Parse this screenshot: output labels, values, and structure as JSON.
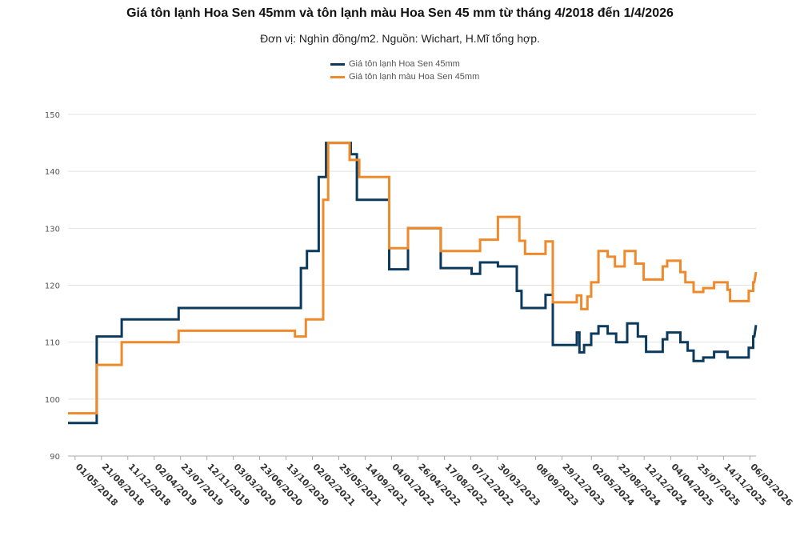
{
  "chart_data": {
    "type": "line",
    "title": "Giá tôn lạnh Hoa Sen 45mm và tôn lạnh màu Hoa Sen 45 mm từ tháng 4/2018 đến 1/4/2026",
    "subtitle": "Đơn vị: Nghìn đồng/m2. Nguồn: Wichart, H.Mĩ tổng hợp.",
    "ylim": [
      90,
      150
    ],
    "yticks": [
      90,
      100,
      110,
      120,
      130,
      140,
      150
    ],
    "x_range": [
      "2018-04-01",
      "2026-04-01"
    ],
    "xticks": [
      "01/05/2018",
      "21/08/2018",
      "11/12/2018",
      "02/04/2019",
      "23/07/2019",
      "12/11/2019",
      "03/03/2020",
      "23/06/2020",
      "13/10/2020",
      "02/02/2021",
      "25/05/2021",
      "14/09/2021",
      "04/01/2022",
      "26/04/2022",
      "17/08/2022",
      "07/12/2022",
      "30/03/2023",
      "08/09/2023",
      "29/12/2023",
      "02/05/2024",
      "22/08/2024",
      "12/12/2024",
      "04/04/2025",
      "25/07/2025",
      "14/11/2025",
      "06/03/2026"
    ],
    "legend_position": "top-center",
    "grid": true,
    "series": [
      {
        "name": "Giá tôn lạnh Hoa Sen 45mm",
        "color": "#0b3a5c",
        "points": [
          [
            "2018-04-01",
            95.8
          ],
          [
            "2018-08-01",
            95.8
          ],
          [
            "2018-08-01",
            111
          ],
          [
            "2018-11-15",
            111
          ],
          [
            "2018-11-15",
            114
          ],
          [
            "2019-07-15",
            114
          ],
          [
            "2019-07-15",
            116
          ],
          [
            "2020-12-15",
            116
          ],
          [
            "2020-12-15",
            123
          ],
          [
            "2021-01-10",
            123
          ],
          [
            "2021-01-10",
            126
          ],
          [
            "2021-03-01",
            126
          ],
          [
            "2021-03-01",
            139
          ],
          [
            "2021-04-01",
            139
          ],
          [
            "2021-04-01",
            145
          ],
          [
            "2021-07-15",
            145
          ],
          [
            "2021-07-15",
            143
          ],
          [
            "2021-08-10",
            143
          ],
          [
            "2021-08-10",
            135
          ],
          [
            "2021-12-25",
            135
          ],
          [
            "2021-12-25",
            122.8
          ],
          [
            "2022-03-15",
            122.8
          ],
          [
            "2022-03-15",
            130
          ],
          [
            "2022-08-01",
            130
          ],
          [
            "2022-08-01",
            123
          ],
          [
            "2022-12-10",
            123
          ],
          [
            "2022-12-10",
            122
          ],
          [
            "2023-01-15",
            122
          ],
          [
            "2023-01-15",
            124
          ],
          [
            "2023-04-01",
            124
          ],
          [
            "2023-04-01",
            123.3
          ],
          [
            "2023-06-20",
            123.3
          ],
          [
            "2023-06-20",
            119
          ],
          [
            "2023-07-10",
            119
          ],
          [
            "2023-07-10",
            116
          ],
          [
            "2023-10-20",
            116
          ],
          [
            "2023-10-20",
            118.3
          ],
          [
            "2023-11-20",
            118.3
          ],
          [
            "2023-11-20",
            109.5
          ],
          [
            "2024-03-01",
            109.5
          ],
          [
            "2024-03-01",
            111.7
          ],
          [
            "2024-03-12",
            111.7
          ],
          [
            "2024-03-12",
            108.2
          ],
          [
            "2024-04-01",
            108.2
          ],
          [
            "2024-04-01",
            109.5
          ],
          [
            "2024-05-01",
            109.5
          ],
          [
            "2024-05-01",
            111.5
          ],
          [
            "2024-06-01",
            111.5
          ],
          [
            "2024-06-01",
            112.8
          ],
          [
            "2024-07-10",
            112.8
          ],
          [
            "2024-07-10",
            111.5
          ],
          [
            "2024-08-15",
            111.5
          ],
          [
            "2024-08-15",
            110
          ],
          [
            "2024-10-01",
            110
          ],
          [
            "2024-10-01",
            113.3
          ],
          [
            "2024-11-15",
            113.3
          ],
          [
            "2024-11-15",
            111
          ],
          [
            "2024-12-20",
            111
          ],
          [
            "2024-12-20",
            108.3
          ],
          [
            "2025-03-01",
            108.3
          ],
          [
            "2025-03-01",
            110.5
          ],
          [
            "2025-03-20",
            110.5
          ],
          [
            "2025-03-20",
            111.7
          ],
          [
            "2025-05-15",
            111.7
          ],
          [
            "2025-05-15",
            110
          ],
          [
            "2025-06-15",
            110
          ],
          [
            "2025-06-15",
            108.5
          ],
          [
            "2025-07-10",
            108.5
          ],
          [
            "2025-07-10",
            106.7
          ],
          [
            "2025-08-20",
            106.7
          ],
          [
            "2025-08-20",
            107.3
          ],
          [
            "2025-10-05",
            107.3
          ],
          [
            "2025-10-05",
            108.3
          ],
          [
            "2025-12-01",
            108.3
          ],
          [
            "2025-12-01",
            107.3
          ],
          [
            "2026-03-01",
            107.3
          ],
          [
            "2026-03-01",
            109
          ],
          [
            "2026-03-20",
            109
          ],
          [
            "2026-03-20",
            111
          ],
          [
            "2026-03-25",
            111
          ],
          [
            "2026-04-01",
            113
          ]
        ]
      },
      {
        "name": "Giá tôn lạnh màu Hoa Sen 45mm",
        "color": "#ee8a2c",
        "points": [
          [
            "2018-04-01",
            97.5
          ],
          [
            "2018-08-01",
            97.5
          ],
          [
            "2018-08-01",
            106
          ],
          [
            "2018-11-15",
            106
          ],
          [
            "2018-11-15",
            110
          ],
          [
            "2019-07-15",
            110
          ],
          [
            "2019-07-15",
            112
          ],
          [
            "2020-11-20",
            112
          ],
          [
            "2020-11-20",
            111
          ],
          [
            "2021-01-05",
            111
          ],
          [
            "2021-01-05",
            114
          ],
          [
            "2021-03-20",
            114
          ],
          [
            "2021-03-20",
            135
          ],
          [
            "2021-04-10",
            135
          ],
          [
            "2021-04-10",
            145
          ],
          [
            "2021-07-10",
            145
          ],
          [
            "2021-07-10",
            142
          ],
          [
            "2021-08-20",
            142
          ],
          [
            "2021-08-20",
            139
          ],
          [
            "2021-12-25",
            139
          ],
          [
            "2021-12-25",
            126.5
          ],
          [
            "2022-03-15",
            126.5
          ],
          [
            "2022-03-15",
            130
          ],
          [
            "2022-08-01",
            130
          ],
          [
            "2022-08-01",
            126
          ],
          [
            "2023-01-15",
            126
          ],
          [
            "2023-01-15",
            128
          ],
          [
            "2023-04-01",
            128
          ],
          [
            "2023-04-01",
            132
          ],
          [
            "2023-07-01",
            132
          ],
          [
            "2023-07-01",
            127.8
          ],
          [
            "2023-07-25",
            127.8
          ],
          [
            "2023-07-25",
            125.5
          ],
          [
            "2023-10-20",
            125.5
          ],
          [
            "2023-10-20",
            127.7
          ],
          [
            "2023-11-20",
            127.7
          ],
          [
            "2023-11-20",
            117
          ],
          [
            "2024-03-01",
            117
          ],
          [
            "2024-03-01",
            118.2
          ],
          [
            "2024-03-20",
            118.2
          ],
          [
            "2024-03-20",
            115.8
          ],
          [
            "2024-04-15",
            115.8
          ],
          [
            "2024-04-15",
            118
          ],
          [
            "2024-05-01",
            118
          ],
          [
            "2024-05-01",
            120.5
          ],
          [
            "2024-06-01",
            120.5
          ],
          [
            "2024-06-01",
            126
          ],
          [
            "2024-07-10",
            126
          ],
          [
            "2024-07-10",
            125
          ],
          [
            "2024-08-10",
            125
          ],
          [
            "2024-08-10",
            123.3
          ],
          [
            "2024-09-20",
            123.3
          ],
          [
            "2024-09-20",
            126
          ],
          [
            "2024-11-05",
            126
          ],
          [
            "2024-11-05",
            123.8
          ],
          [
            "2024-12-10",
            123.8
          ],
          [
            "2024-12-10",
            121
          ],
          [
            "2025-03-01",
            121
          ],
          [
            "2025-03-01",
            123.3
          ],
          [
            "2025-03-20",
            123.3
          ],
          [
            "2025-03-20",
            124.3
          ],
          [
            "2025-05-15",
            124.3
          ],
          [
            "2025-05-15",
            122.3
          ],
          [
            "2025-06-05",
            122.3
          ],
          [
            "2025-06-05",
            120.5
          ],
          [
            "2025-07-10",
            120.5
          ],
          [
            "2025-07-10",
            118.8
          ],
          [
            "2025-08-20",
            118.8
          ],
          [
            "2025-08-20",
            119.5
          ],
          [
            "2025-10-05",
            119.5
          ],
          [
            "2025-10-05",
            120.5
          ],
          [
            "2025-12-01",
            120.5
          ],
          [
            "2025-12-01",
            119.2
          ],
          [
            "2025-12-12",
            119.2
          ],
          [
            "2025-12-12",
            117.2
          ],
          [
            "2026-03-01",
            117.2
          ],
          [
            "2026-03-01",
            119
          ],
          [
            "2026-03-20",
            119
          ],
          [
            "2026-03-20",
            120.5
          ],
          [
            "2026-03-25",
            120.5
          ],
          [
            "2026-04-01",
            122.3
          ]
        ]
      }
    ]
  }
}
